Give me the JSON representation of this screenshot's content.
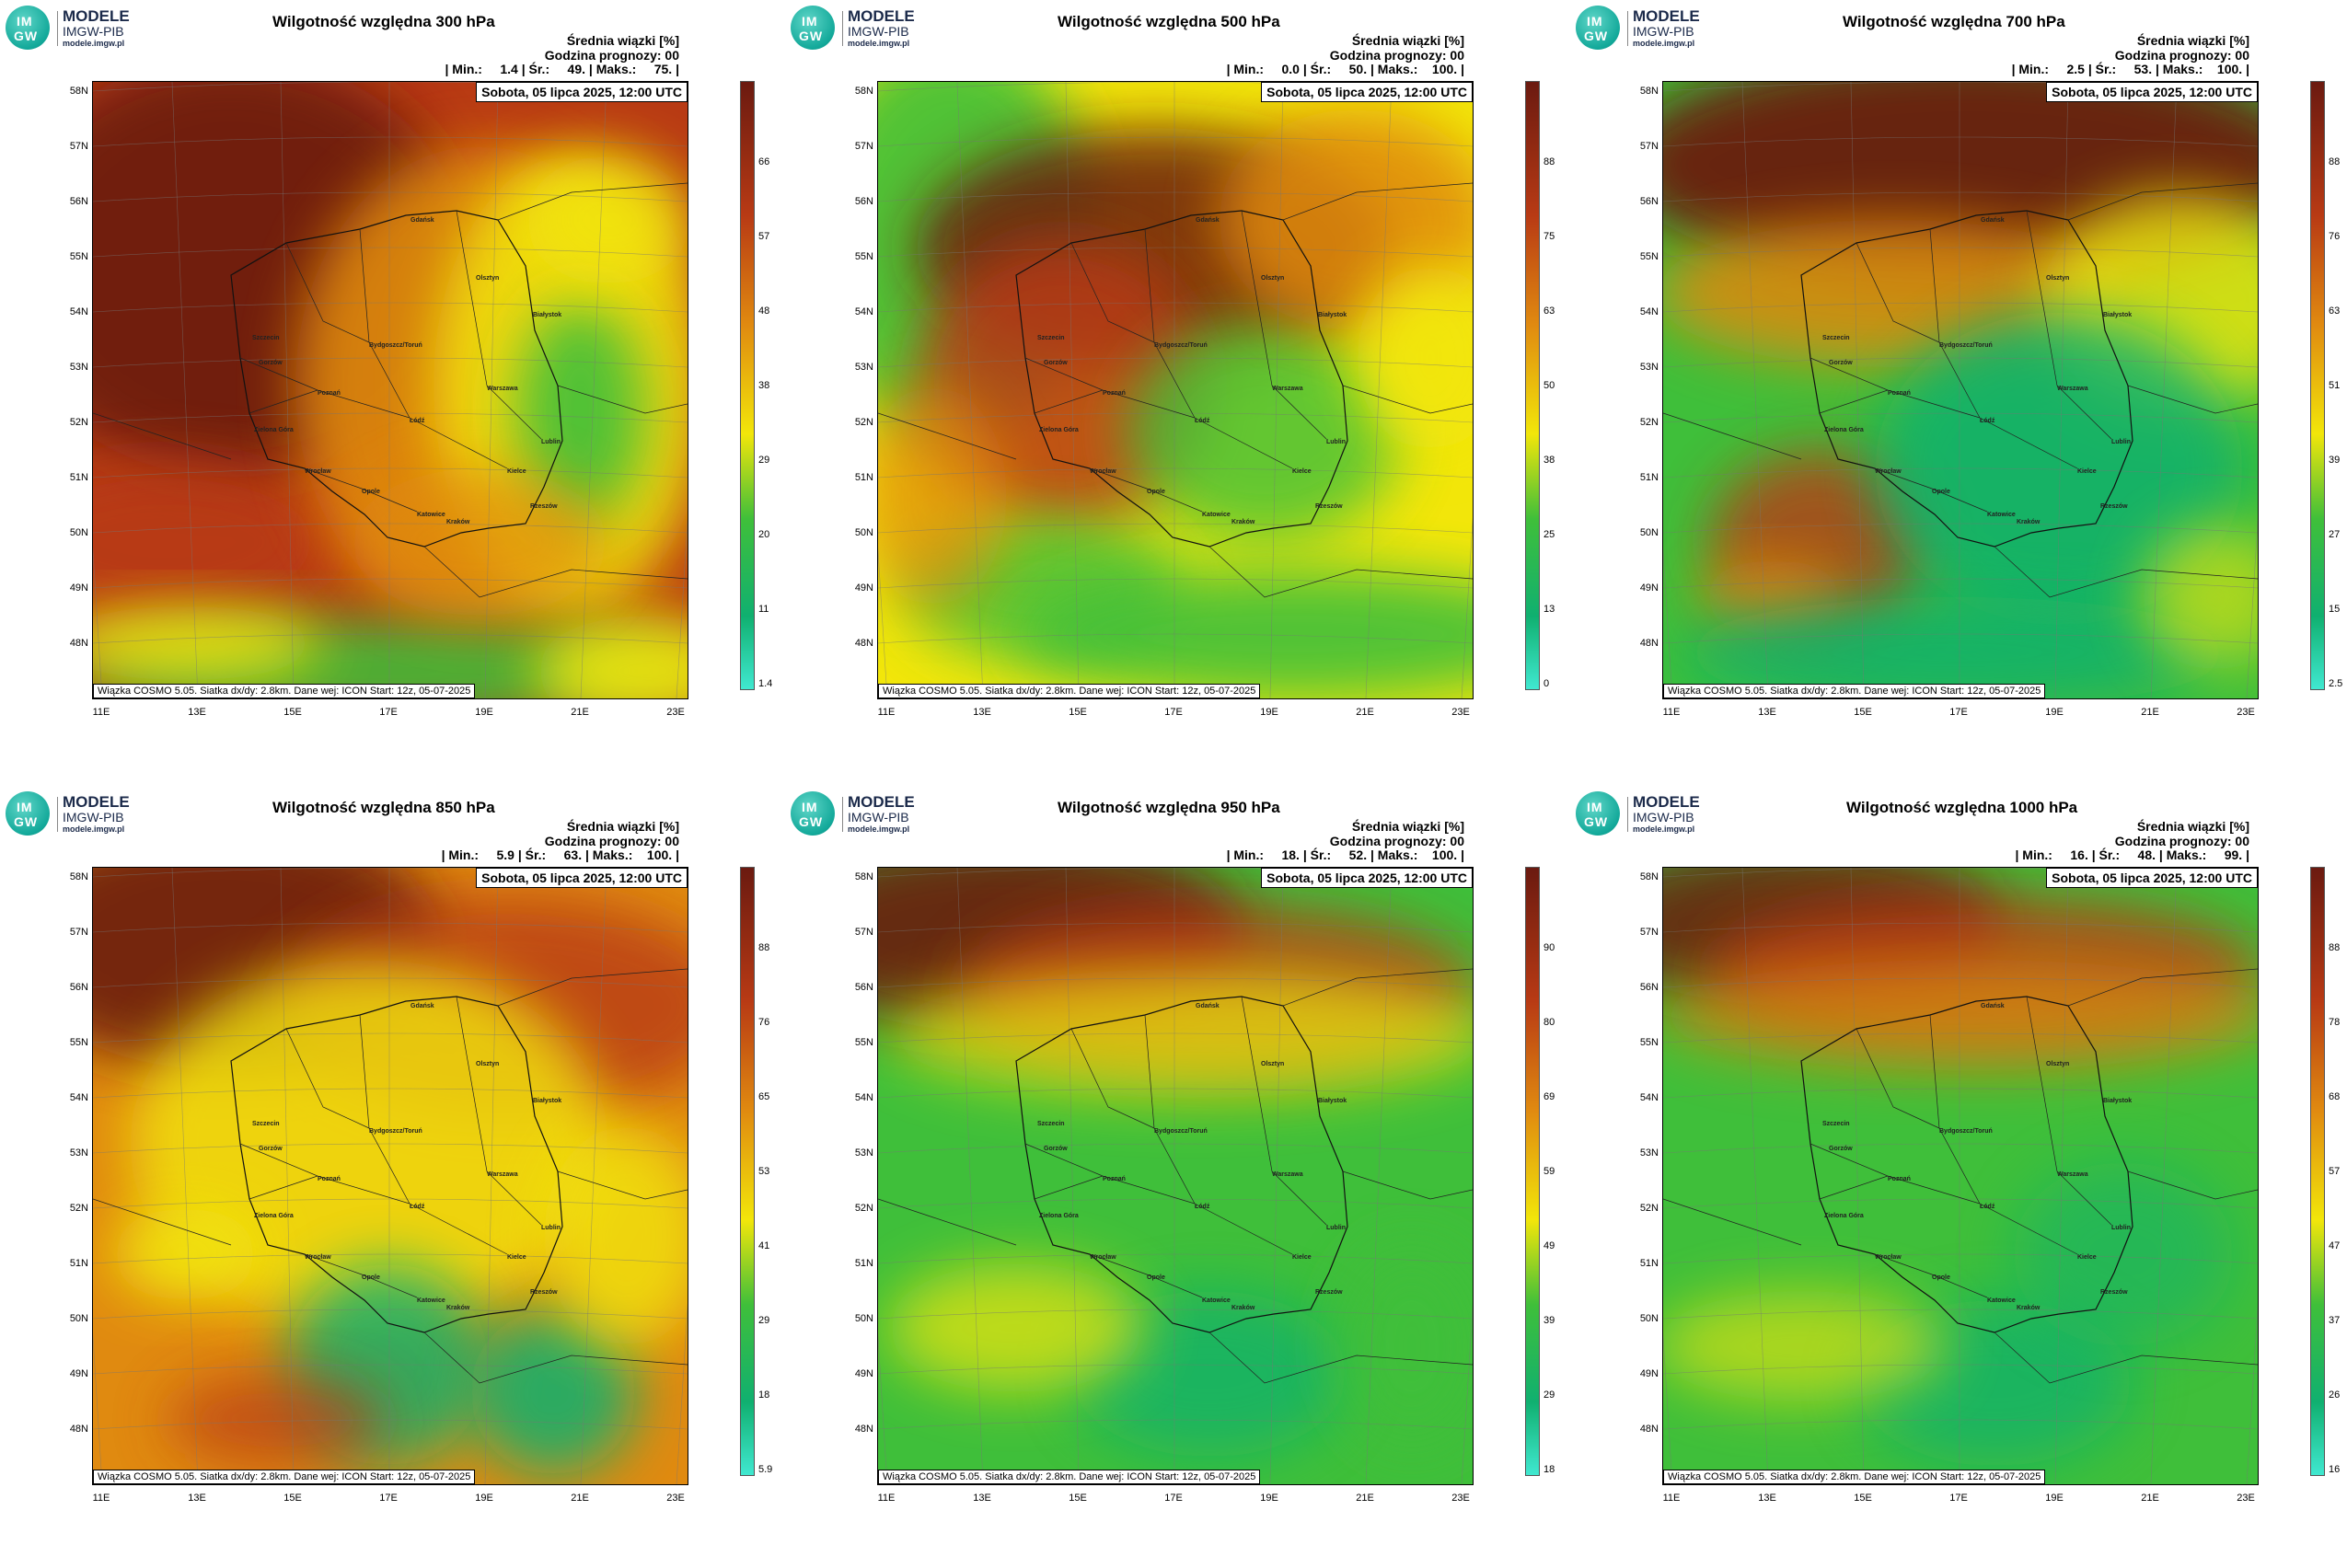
{
  "brand": {
    "line1": "MODELE",
    "line2": "IMGW-PIB",
    "line3": "modele.imgw.pl",
    "logo_top": "IM",
    "logo_bottom": "GW"
  },
  "legend_title": "Średnia wiązki [%]",
  "forecast_hour": "Godzina prognozy: 00",
  "date": "Sobota, 05 lipca 2025, 12:00 UTC",
  "footer": "Wiązka COSMO 5.05. Siatka dx/dy: 2.8km. Dane wej: ICON Start: 12z, 05-07-2025",
  "lat_labels": [
    "58N",
    "57N",
    "56N",
    "55N",
    "54N",
    "53N",
    "52N",
    "51N",
    "50N",
    "49N",
    "48N"
  ],
  "lon_labels": [
    "11E",
    "13E",
    "15E",
    "17E",
    "19E",
    "21E",
    "23E"
  ],
  "cities": [
    "Gdańsk",
    "Olsztyn",
    "Szczecin",
    "Białystok",
    "Bydgoszcz/Toruń",
    "Gorzów",
    "Poznań",
    "Warszawa",
    "Zielona Góra",
    "Łódź",
    "Lublin",
    "Wrocław",
    "Kielce",
    "Opole",
    "Katowice",
    "Kraków",
    "Rzeszów"
  ],
  "icons": {
    "logo": "imgw-logo-icon"
  },
  "colors": {
    "dark_brown": "#6b1a10",
    "red": "#b83a14",
    "orange": "#e08a10",
    "yellow": "#f2e60a",
    "green": "#3fbf3a",
    "teal": "#10b070",
    "cyan": "#40e8d0"
  },
  "panels": [
    {
      "title": "Wilgotność względna 300 hPa",
      "stats": "| Min.:     1.4 | Śr.:     49. | Maks.:     75. |",
      "min": 1.4,
      "mean": 49,
      "max": 75,
      "ticks": [
        "66",
        "57",
        "48",
        "38",
        "29",
        "20",
        "11",
        "1.4"
      ],
      "pattern": "p300"
    },
    {
      "title": "Wilgotność względna 500 hPa",
      "stats": "| Min.:     0.0 | Śr.:     50. | Maks.:    100. |",
      "min": 0.0,
      "mean": 50,
      "max": 100,
      "ticks": [
        "88",
        "75",
        "63",
        "50",
        "38",
        "25",
        "13",
        "0"
      ],
      "pattern": "p500"
    },
    {
      "title": "Wilgotność względna 700 hPa",
      "stats": "| Min.:     2.5 | Śr.:     53. | Maks.:    100. |",
      "min": 2.5,
      "mean": 53,
      "max": 100,
      "ticks": [
        "88",
        "76",
        "63",
        "51",
        "39",
        "27",
        "15",
        "2.5"
      ],
      "pattern": "p700"
    },
    {
      "title": "Wilgotność względna 850 hPa",
      "stats": "| Min.:     5.9 | Śr.:     63. | Maks.:    100. |",
      "min": 5.9,
      "mean": 63,
      "max": 100,
      "ticks": [
        "88",
        "76",
        "65",
        "53",
        "41",
        "29",
        "18",
        "5.9"
      ],
      "pattern": "p850"
    },
    {
      "title": "Wilgotność względna 950 hPa",
      "stats": "| Min.:     18. | Śr.:     52. | Maks.:    100. |",
      "min": 18,
      "mean": 52,
      "max": 100,
      "ticks": [
        "90",
        "80",
        "69",
        "59",
        "49",
        "39",
        "29",
        "18"
      ],
      "pattern": "p950"
    },
    {
      "title": "Wilgotność względna 1000 hPa",
      "stats": "| Min.:     16. | Śr.:     48. | Maks.:     99. |",
      "min": 16,
      "mean": 48,
      "max": 99,
      "ticks": [
        "88",
        "78",
        "68",
        "57",
        "47",
        "37",
        "26",
        "16"
      ],
      "pattern": "p1000"
    }
  ]
}
